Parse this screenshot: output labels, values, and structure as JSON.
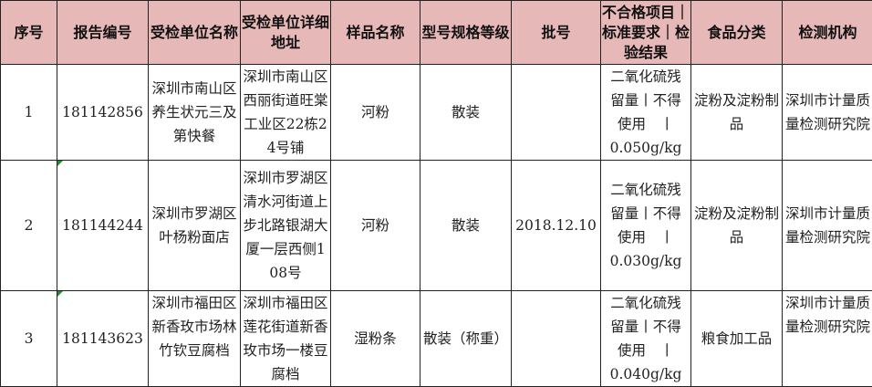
{
  "headers": [
    "序号",
    "报告编号",
    "受检单位名称",
    "受检单位详细地址",
    "样品名称",
    "型号规格等级",
    "批号",
    "不合格项目｜标准要求｜检验结果",
    "食品分类",
    "检测机构"
  ],
  "rows": [
    {
      "no": "1",
      "report": "181142856",
      "unit": "深圳市南山区养生状元三及第快餐",
      "address": "深圳市南山区西丽街道旺棠工业区22栋24号铺",
      "sample": "河粉",
      "spec": "散装",
      "batch": "",
      "item": "二氧化硫残\n留量丨不得\n使用　丨\n0.050g/kg",
      "category": "淀粉及淀粉制品",
      "agency": "深圳市计量质量检测研究院"
    },
    {
      "no": "2",
      "report": "181144244",
      "unit": "深圳市罗湖区叶杨粉面店",
      "address": "深圳市罗湖区清水河街道上步北路银湖大厦一层西侧108号",
      "sample": "河粉",
      "spec": "散装",
      "batch": "2018.12.10",
      "item": "二氧化硫残\n留量丨不得\n使用　丨\n0.030g/kg",
      "category": "淀粉及淀粉制品",
      "agency": "深圳市计量质量检测研究院"
    },
    {
      "no": "3",
      "report": "181143623",
      "unit": "深圳市福田区新香玫市场林竹钦豆腐档",
      "address": "深圳市福田区莲花街道新香玫市场一楼豆腐档",
      "sample": "湿粉条",
      "spec": "散装（称重）",
      "batch": "",
      "item": "二氧化硫残\n留量丨不得\n使用　丨\n0.040g/kg",
      "category": "粮食加工品",
      "agency": "深圳市计量质量检测研究院"
    }
  ],
  "colors": {
    "header_bg": "#e6b8b7",
    "comment_flag": "#1f8f3a"
  }
}
